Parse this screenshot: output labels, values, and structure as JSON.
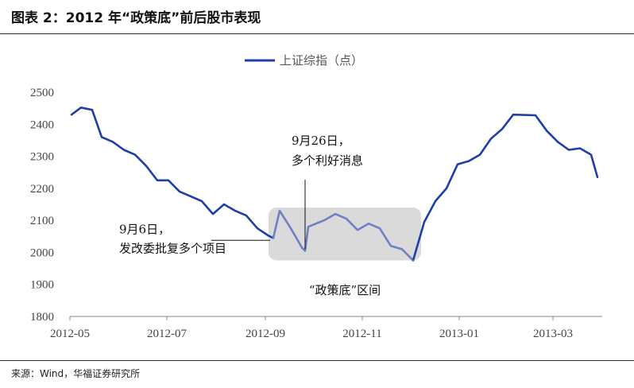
{
  "figure": {
    "title": "图表 2：2012 年“政策底”前后股市表现",
    "source": "来源：Wind，华福证券研究所"
  },
  "chart_data": {
    "type": "line",
    "ylim": [
      1800,
      2500
    ],
    "yticks": [
      1800,
      1900,
      2000,
      2100,
      2200,
      2300,
      2400,
      2500
    ],
    "xticks": [
      "2012-05",
      "2012-07",
      "2012-09",
      "2012-11",
      "2013-01",
      "2013-03"
    ],
    "grid": false,
    "legend_position": "top",
    "colors": {
      "line": "#1e3fa8",
      "line_in_zone": "#6f80c4",
      "shade": "#dadada"
    },
    "series": [
      {
        "name": "上证综指（点）",
        "x": [
          "2012-05-02",
          "2012-05-08",
          "2012-05-15",
          "2012-05-21",
          "2012-05-28",
          "2012-06-04",
          "2012-06-11",
          "2012-06-18",
          "2012-06-25",
          "2012-07-02",
          "2012-07-09",
          "2012-07-16",
          "2012-07-23",
          "2012-07-30",
          "2012-08-06",
          "2012-08-13",
          "2012-08-20",
          "2012-08-27",
          "2012-09-03",
          "2012-09-06",
          "2012-09-10",
          "2012-09-17",
          "2012-09-24",
          "2012-09-26",
          "2012-09-28",
          "2012-10-08",
          "2012-10-15",
          "2012-10-22",
          "2012-10-29",
          "2012-11-05",
          "2012-11-12",
          "2012-11-19",
          "2012-11-26",
          "2012-12-03",
          "2012-12-10",
          "2012-12-17",
          "2012-12-24",
          "2012-12-31",
          "2013-01-07",
          "2013-01-14",
          "2013-01-21",
          "2013-01-28",
          "2013-02-04",
          "2013-02-18",
          "2013-02-25",
          "2013-03-04",
          "2013-03-11",
          "2013-03-18",
          "2013-03-25",
          "2013-03-29"
        ],
        "values": [
          2430,
          2452,
          2445,
          2360,
          2345,
          2320,
          2305,
          2270,
          2225,
          2225,
          2190,
          2175,
          2160,
          2120,
          2150,
          2130,
          2115,
          2075,
          2052,
          2045,
          2130,
          2075,
          2015,
          2005,
          2080,
          2100,
          2120,
          2105,
          2070,
          2090,
          2075,
          2020,
          2010,
          1975,
          2095,
          2160,
          2200,
          2275,
          2285,
          2305,
          2355,
          2385,
          2430,
          2428,
          2380,
          2345,
          2320,
          2325,
          2305,
          2235
        ]
      }
    ],
    "shaded_zone": {
      "x_start": "2012-09-06",
      "x_end": "2012-12-03",
      "label": "“政策底”区间"
    },
    "annotations": [
      {
        "x": "2012-09-06",
        "y": 2045,
        "line1": "9月6日，",
        "line2": "发改委批复多个项目"
      },
      {
        "x": "2012-09-26",
        "y": 2005,
        "line1": "9月26日，",
        "line2": "多个利好消息"
      }
    ]
  }
}
